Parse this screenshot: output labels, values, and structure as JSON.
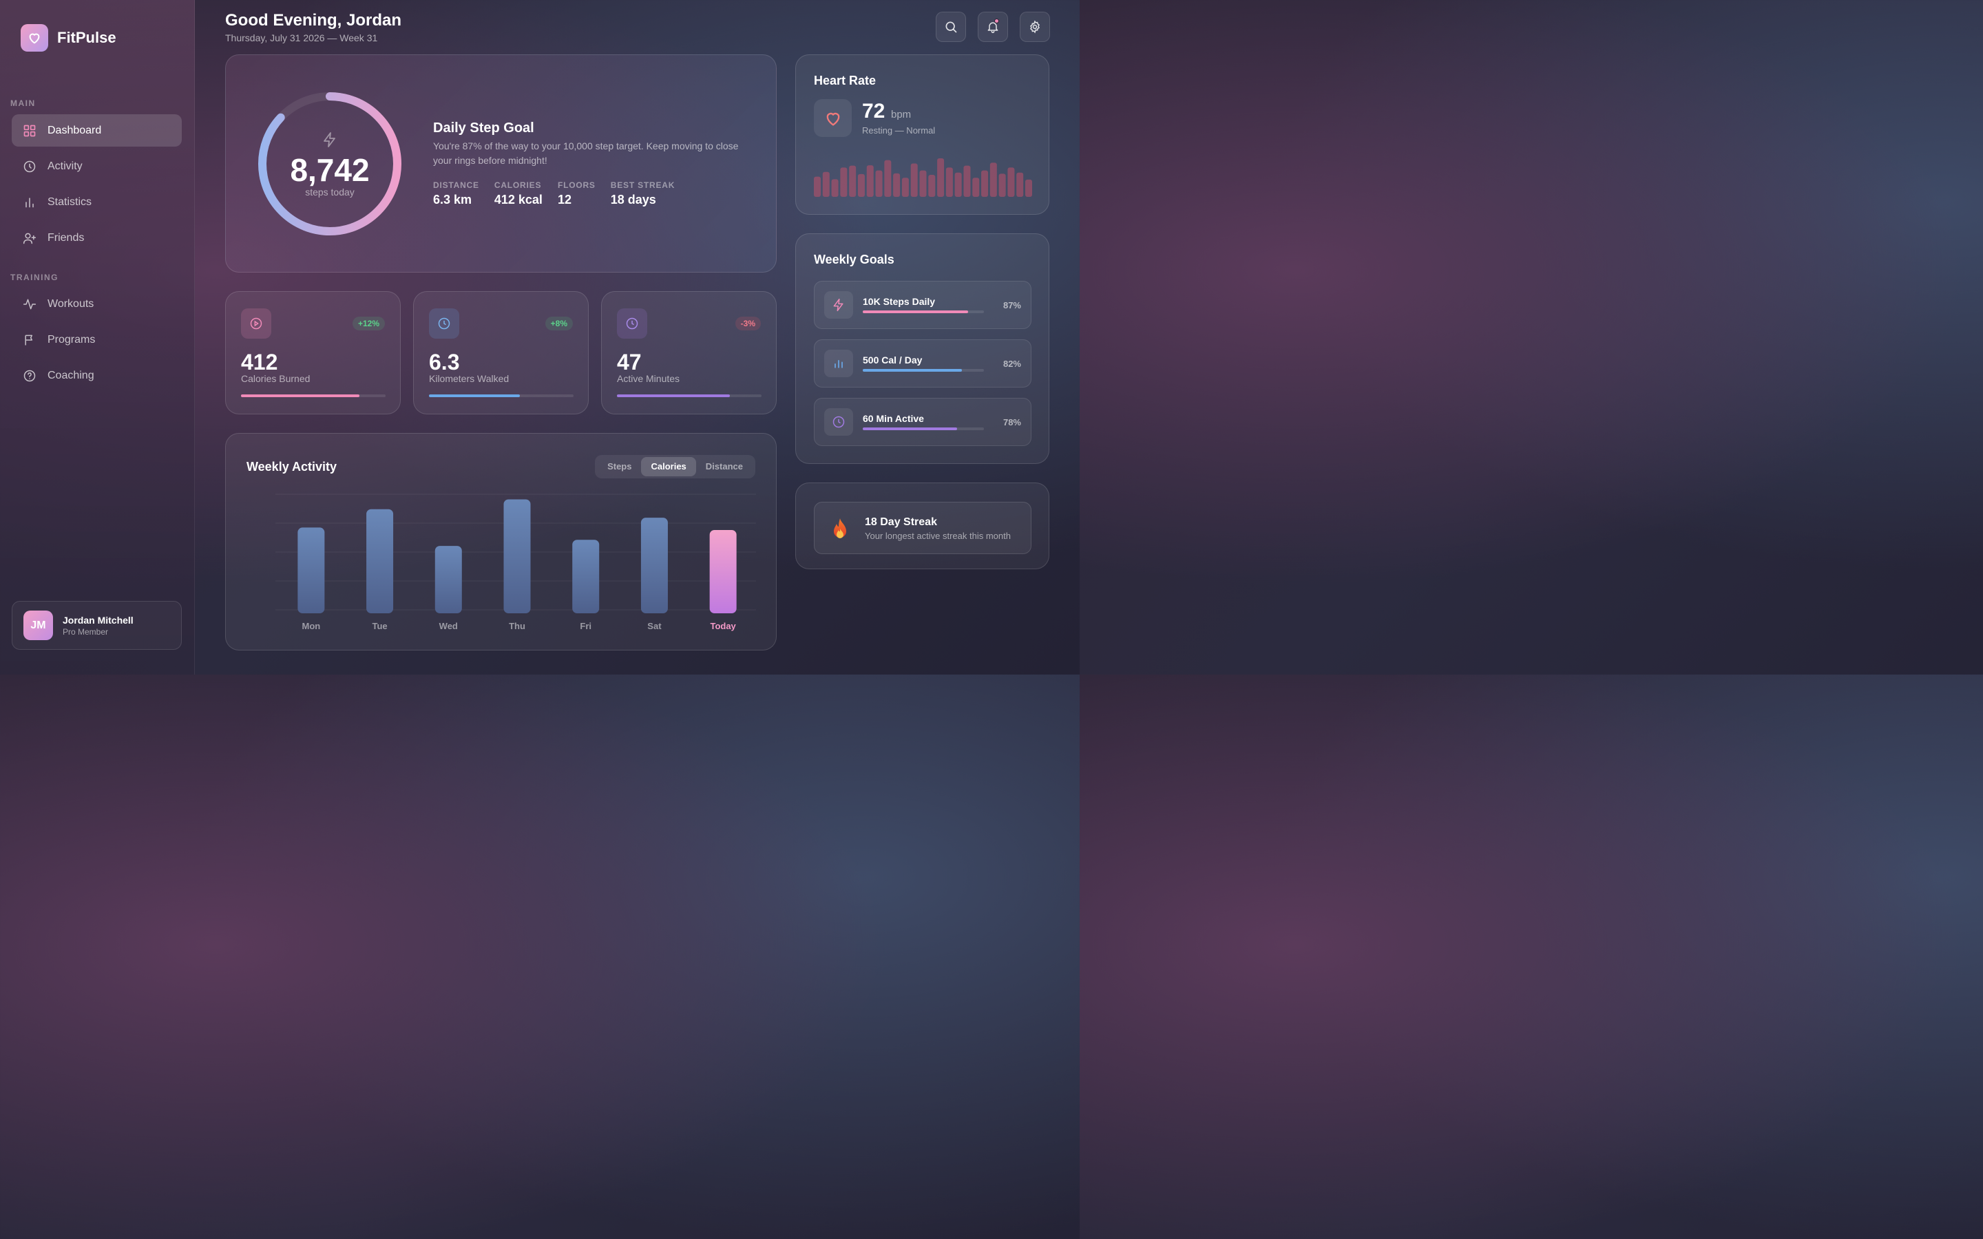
{
  "app": {
    "name": "FitPulse"
  },
  "sidebar": {
    "sections": [
      {
        "label": "MAIN",
        "items": [
          {
            "label": "Dashboard",
            "icon": "grid-icon",
            "active": true
          },
          {
            "label": "Activity",
            "icon": "clock-icon"
          },
          {
            "label": "Statistics",
            "icon": "bar-chart-icon"
          },
          {
            "label": "Friends",
            "icon": "user-plus-icon"
          }
        ]
      },
      {
        "label": "TRAINING",
        "items": [
          {
            "label": "Workouts",
            "icon": "pulse-icon"
          },
          {
            "label": "Programs",
            "icon": "flag-icon"
          },
          {
            "label": "Coaching",
            "icon": "help-circle-icon"
          }
        ]
      }
    ],
    "user": {
      "initials": "JM",
      "name": "Jordan Mitchell",
      "role": "Pro Member"
    }
  },
  "header": {
    "greeting": "Good Evening, Jordan",
    "date": "Thursday, July 31 2026 — Week 31",
    "actions": [
      "search-icon",
      "bell-icon",
      "gear-icon"
    ]
  },
  "hero": {
    "steps": "8,742",
    "steps_sub": "steps today",
    "progress": 0.87,
    "title": "Daily Step Goal",
    "description": "You're 87% of the way to your 10,000 step target. Keep moving to close your rings before midnight!",
    "stats": [
      {
        "label": "DISTANCE",
        "value": "6.3 km"
      },
      {
        "label": "CALORIES",
        "value": "412 kcal"
      },
      {
        "label": "FLOORS",
        "value": "12"
      },
      {
        "label": "BEST STREAK",
        "value": "18 days"
      }
    ]
  },
  "stat_cards": [
    {
      "value": "412",
      "label": "Calories Burned",
      "badge": "+12%",
      "trend": "up",
      "progress": 0.82,
      "color": "#f08ab8",
      "icon": "play-circle-icon"
    },
    {
      "value": "6.3",
      "label": "Kilometers Walked",
      "badge": "+8%",
      "trend": "up",
      "progress": 0.63,
      "color": "#6aa8e8",
      "icon": "clock-icon"
    },
    {
      "value": "47",
      "label": "Active Minutes",
      "badge": "-3%",
      "trend": "down",
      "progress": 0.78,
      "color": "#a07ae0",
      "icon": "clock-icon"
    }
  ],
  "weekly": {
    "title": "Weekly Activity",
    "tabs": [
      {
        "label": "Steps"
      },
      {
        "label": "Calories",
        "active": true
      },
      {
        "label": "Distance"
      }
    ]
  },
  "chart_data": {
    "type": "bar",
    "categories": [
      "Mon",
      "Tue",
      "Wed",
      "Thu",
      "Fri",
      "Sat",
      "Today"
    ],
    "values": [
      70,
      85,
      55,
      93,
      60,
      78,
      68
    ],
    "highlight": "Today",
    "ylim": [
      0,
      100
    ],
    "grid": true
  },
  "heart_rate": {
    "title": "Heart Rate",
    "value": "72",
    "unit": "bpm",
    "status": "Resting — Normal",
    "bars": [
      0.55,
      0.68,
      0.48,
      0.8,
      0.85,
      0.62,
      0.86,
      0.72,
      1.0,
      0.64,
      0.52,
      0.91,
      0.72,
      0.6,
      1.05,
      0.8,
      0.66,
      0.85,
      0.52,
      0.72,
      0.93,
      0.63,
      0.8,
      0.66,
      0.47
    ],
    "color": "#c0506a"
  },
  "goals": {
    "title": "Weekly Goals",
    "items": [
      {
        "name": "10K Steps Daily",
        "pct": "87%",
        "progress": 0.87,
        "color": "#f08ab8",
        "icon": "lightning-icon"
      },
      {
        "name": "500 Cal / Day",
        "pct": "82%",
        "progress": 0.82,
        "color": "#6aa8e8",
        "icon": "bar-chart-icon"
      },
      {
        "name": "60 Min Active",
        "pct": "78%",
        "progress": 0.78,
        "color": "#a07ae0",
        "icon": "clock-icon"
      }
    ]
  },
  "streak": {
    "title": "18 Day Streak",
    "subtitle": "Your longest active streak this month",
    "icon": "flame-icon"
  }
}
